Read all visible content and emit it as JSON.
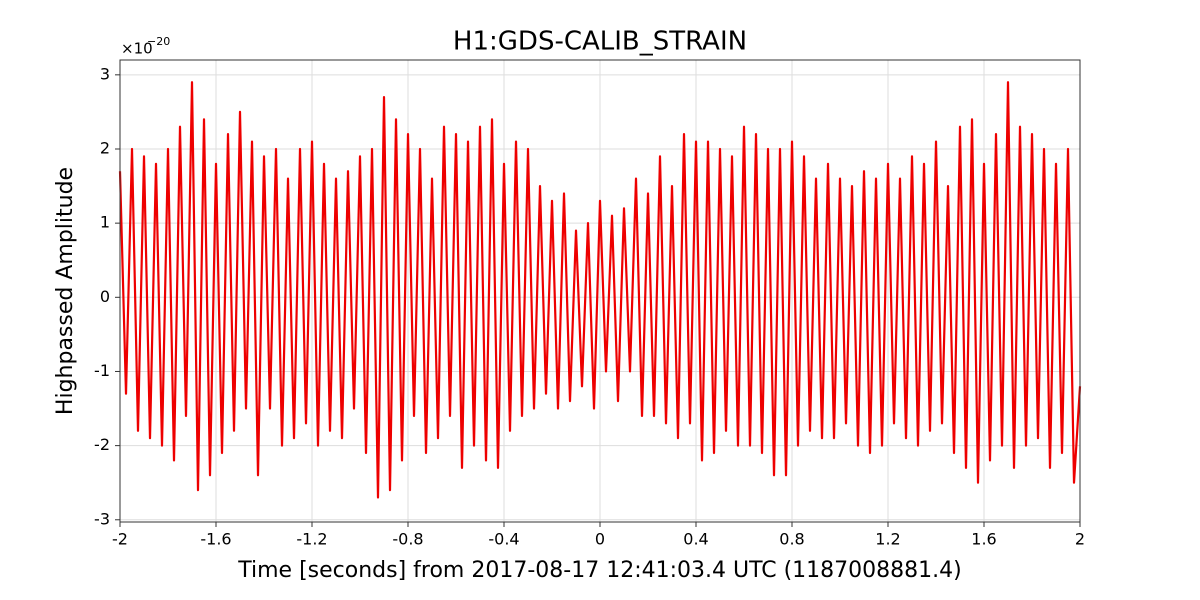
{
  "chart_data": {
    "type": "line",
    "title": "H1:GDS-CALIB_STRAIN",
    "xlabel": "Time [seconds] from 2017-08-17 12:41:03.4 UTC (1187008881.4)",
    "ylabel": "Highpassed Amplitude",
    "y_multiplier": {
      "base": "×10",
      "exponent": "−20"
    },
    "xlim": [
      -2,
      2
    ],
    "ylim": [
      -3.03,
      3.2
    ],
    "xticks": [
      -2,
      -1.6,
      -1.2,
      -0.8,
      -0.4,
      0,
      0.4,
      0.8,
      1.2,
      1.6,
      2
    ],
    "yticks": [
      -3,
      -2,
      -1,
      0,
      1,
      2,
      3
    ],
    "grid": true,
    "x": [
      -2,
      -1.975,
      -1.95,
      -1.925,
      -1.9,
      -1.875,
      -1.85,
      -1.825,
      -1.8,
      -1.775,
      -1.75,
      -1.725,
      -1.7,
      -1.675,
      -1.65,
      -1.625,
      -1.6,
      -1.575,
      -1.55,
      -1.525,
      -1.5,
      -1.475,
      -1.45,
      -1.425,
      -1.4,
      -1.375,
      -1.35,
      -1.325,
      -1.3,
      -1.275,
      -1.25,
      -1.225,
      -1.2,
      -1.175,
      -1.15,
      -1.125,
      -1.1,
      -1.075,
      -1.05,
      -1.025,
      -1,
      -0.975,
      -0.95,
      -0.925,
      -0.9,
      -0.875,
      -0.85,
      -0.825,
      -0.8,
      -0.775,
      -0.75,
      -0.725,
      -0.7,
      -0.675,
      -0.65,
      -0.625,
      -0.6,
      -0.575,
      -0.55,
      -0.525,
      -0.5,
      -0.475,
      -0.45,
      -0.425,
      -0.4,
      -0.375,
      -0.35,
      -0.325,
      -0.3,
      -0.275,
      -0.25,
      -0.225,
      -0.2,
      -0.175,
      -0.15,
      -0.125,
      -0.1,
      -0.075,
      -0.05,
      -0.025,
      0,
      0.025,
      0.05,
      0.075,
      0.1,
      0.125,
      0.15,
      0.175,
      0.2,
      0.225,
      0.25,
      0.275,
      0.3,
      0.325,
      0.35,
      0.375,
      0.4,
      0.425,
      0.45,
      0.475,
      0.5,
      0.525,
      0.55,
      0.575,
      0.6,
      0.625,
      0.65,
      0.675,
      0.7,
      0.725,
      0.75,
      0.775,
      0.8,
      0.825,
      0.85,
      0.875,
      0.9,
      0.925,
      0.95,
      0.975,
      1,
      1.025,
      1.05,
      1.075,
      1.1,
      1.125,
      1.15,
      1.175,
      1.2,
      1.225,
      1.25,
      1.275,
      1.3,
      1.325,
      1.35,
      1.375,
      1.4,
      1.425,
      1.45,
      1.475,
      1.5,
      1.525,
      1.55,
      1.575,
      1.6,
      1.625,
      1.65,
      1.675,
      1.7,
      1.725,
      1.75,
      1.775,
      1.8,
      1.825,
      1.85,
      1.875,
      1.9,
      1.925,
      1.95,
      1.975,
      2
    ],
    "series": [
      {
        "color": "#ee0000",
        "values": [
          1.7,
          -1.3,
          2.0,
          -1.8,
          1.9,
          -1.9,
          1.8,
          -2.0,
          2.0,
          -2.2,
          2.3,
          -1.6,
          2.9,
          -2.6,
          2.4,
          -2.4,
          1.8,
          -2.1,
          2.2,
          -1.8,
          2.5,
          -1.5,
          2.1,
          -2.4,
          1.9,
          -1.5,
          2.0,
          -2.0,
          1.6,
          -1.9,
          2.0,
          -1.7,
          2.1,
          -2.0,
          1.8,
          -1.8,
          1.6,
          -1.9,
          1.7,
          -1.5,
          1.9,
          -2.1,
          2.0,
          -2.7,
          2.7,
          -2.6,
          2.4,
          -2.2,
          2.2,
          -1.6,
          2.0,
          -2.1,
          1.6,
          -1.9,
          2.3,
          -1.6,
          2.2,
          -2.3,
          2.1,
          -2.0,
          2.3,
          -2.2,
          2.4,
          -2.3,
          1.8,
          -1.8,
          2.1,
          -1.6,
          2.0,
          -1.5,
          1.5,
          -1.3,
          1.3,
          -1.5,
          1.4,
          -1.4,
          0.9,
          -1.2,
          1.0,
          -1.5,
          1.3,
          -1.0,
          1.1,
          -1.4,
          1.2,
          -1.0,
          1.6,
          -1.6,
          1.4,
          -1.6,
          1.9,
          -1.7,
          1.5,
          -1.9,
          2.2,
          -1.7,
          2.1,
          -2.2,
          2.1,
          -2.1,
          2.0,
          -1.8,
          1.9,
          -2.0,
          2.3,
          -2.0,
          2.2,
          -2.1,
          2.0,
          -2.4,
          2.0,
          -2.4,
          2.1,
          -2.0,
          1.9,
          -1.8,
          1.6,
          -1.9,
          1.8,
          -1.9,
          1.6,
          -1.7,
          1.5,
          -2.0,
          1.7,
          -2.1,
          1.6,
          -2.0,
          1.8,
          -1.7,
          1.6,
          -1.9,
          1.9,
          -2.0,
          1.8,
          -1.8,
          2.1,
          -1.7,
          1.5,
          -2.1,
          2.3,
          -2.3,
          2.4,
          -2.5,
          1.8,
          -2.2,
          2.2,
          -2.0,
          2.9,
          -2.3,
          2.3,
          -2.0,
          2.2,
          -1.9,
          2.0,
          -2.3,
          1.8,
          -2.1,
          2.0,
          -2.5,
          -1.2
        ]
      }
    ]
  }
}
